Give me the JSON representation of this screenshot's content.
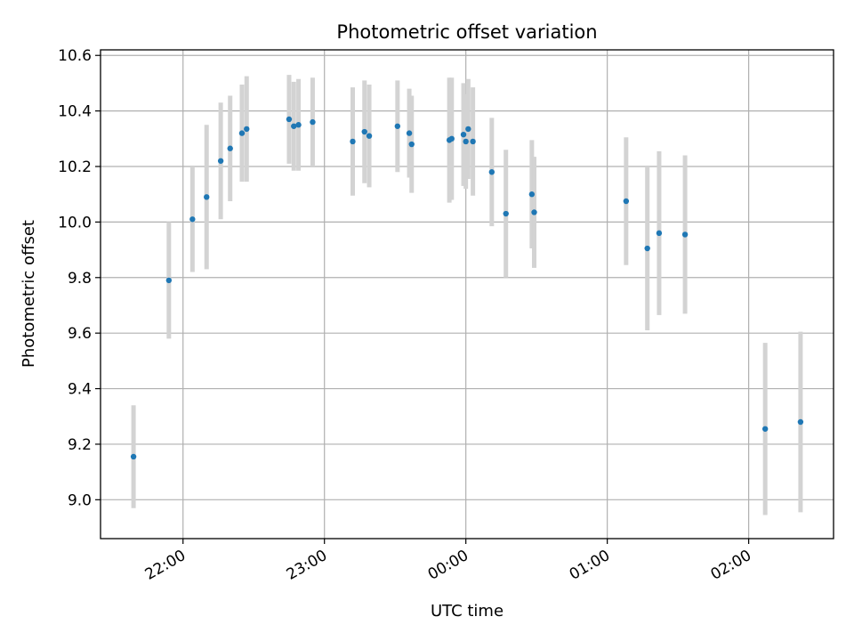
{
  "chart_data": {
    "type": "scatter",
    "title": "Photometric offset variation",
    "xlabel": "UTC time",
    "ylabel": "Photometric offset",
    "x_axis_type": "time",
    "xlim": [
      "21:25",
      "02:36"
    ],
    "ylim": [
      8.86,
      10.62
    ],
    "x_ticks": [
      "22:00",
      "23:00",
      "00:00",
      "01:00",
      "02:00"
    ],
    "y_ticks": [
      "9.0",
      "9.2",
      "9.4",
      "9.6",
      "9.8",
      "10.0",
      "10.2",
      "10.4",
      "10.6"
    ],
    "grid": true,
    "legend": "none",
    "colors": {
      "points": "#1f77b4",
      "error_bars": "#d3d3d3",
      "grid": "#b0b0b0"
    },
    "series": [
      {
        "points": [
          {
            "x": "21:39",
            "y": 9.155,
            "err": 0.185
          },
          {
            "x": "21:54",
            "y": 9.79,
            "err": 0.21
          },
          {
            "x": "22:04",
            "y": 10.01,
            "err": 0.19
          },
          {
            "x": "22:10",
            "y": 10.09,
            "err": 0.26
          },
          {
            "x": "22:16",
            "y": 10.22,
            "err": 0.21
          },
          {
            "x": "22:20",
            "y": 10.265,
            "err": 0.19
          },
          {
            "x": "22:25",
            "y": 10.32,
            "err": 0.175
          },
          {
            "x": "22:27",
            "y": 10.335,
            "err": 0.19
          },
          {
            "x": "22:45",
            "y": 10.37,
            "err": 0.16
          },
          {
            "x": "22:47",
            "y": 10.345,
            "err": 0.16
          },
          {
            "x": "22:49",
            "y": 10.35,
            "err": 0.165
          },
          {
            "x": "22:55",
            "y": 10.36,
            "err": 0.16
          },
          {
            "x": "23:12",
            "y": 10.29,
            "err": 0.195
          },
          {
            "x": "23:17",
            "y": 10.325,
            "err": 0.185
          },
          {
            "x": "23:19",
            "y": 10.31,
            "err": 0.185
          },
          {
            "x": "23:31",
            "y": 10.345,
            "err": 0.165
          },
          {
            "x": "23:36",
            "y": 10.32,
            "err": 0.16
          },
          {
            "x": "23:37",
            "y": 10.28,
            "err": 0.175
          },
          {
            "x": "23:53",
            "y": 10.295,
            "err": 0.225
          },
          {
            "x": "23:54",
            "y": 10.3,
            "err": 0.22
          },
          {
            "x": "23:59",
            "y": 10.315,
            "err": 0.185
          },
          {
            "x": "00:00",
            "y": 10.29,
            "err": 0.17
          },
          {
            "x": "00:01",
            "y": 10.335,
            "err": 0.18
          },
          {
            "x": "00:03",
            "y": 10.29,
            "err": 0.195
          },
          {
            "x": "00:11",
            "y": 10.18,
            "err": 0.195
          },
          {
            "x": "00:17",
            "y": 10.03,
            "err": 0.23
          },
          {
            "x": "00:28",
            "y": 10.1,
            "err": 0.195
          },
          {
            "x": "00:29",
            "y": 10.035,
            "err": 0.2
          },
          {
            "x": "01:08",
            "y": 10.075,
            "err": 0.23
          },
          {
            "x": "01:17",
            "y": 9.905,
            "err": 0.295
          },
          {
            "x": "01:22",
            "y": 9.96,
            "err": 0.295
          },
          {
            "x": "01:33",
            "y": 9.955,
            "err": 0.285
          },
          {
            "x": "02:07",
            "y": 9.255,
            "err": 0.31
          },
          {
            "x": "02:22",
            "y": 9.28,
            "err": 0.325
          }
        ]
      }
    ]
  }
}
